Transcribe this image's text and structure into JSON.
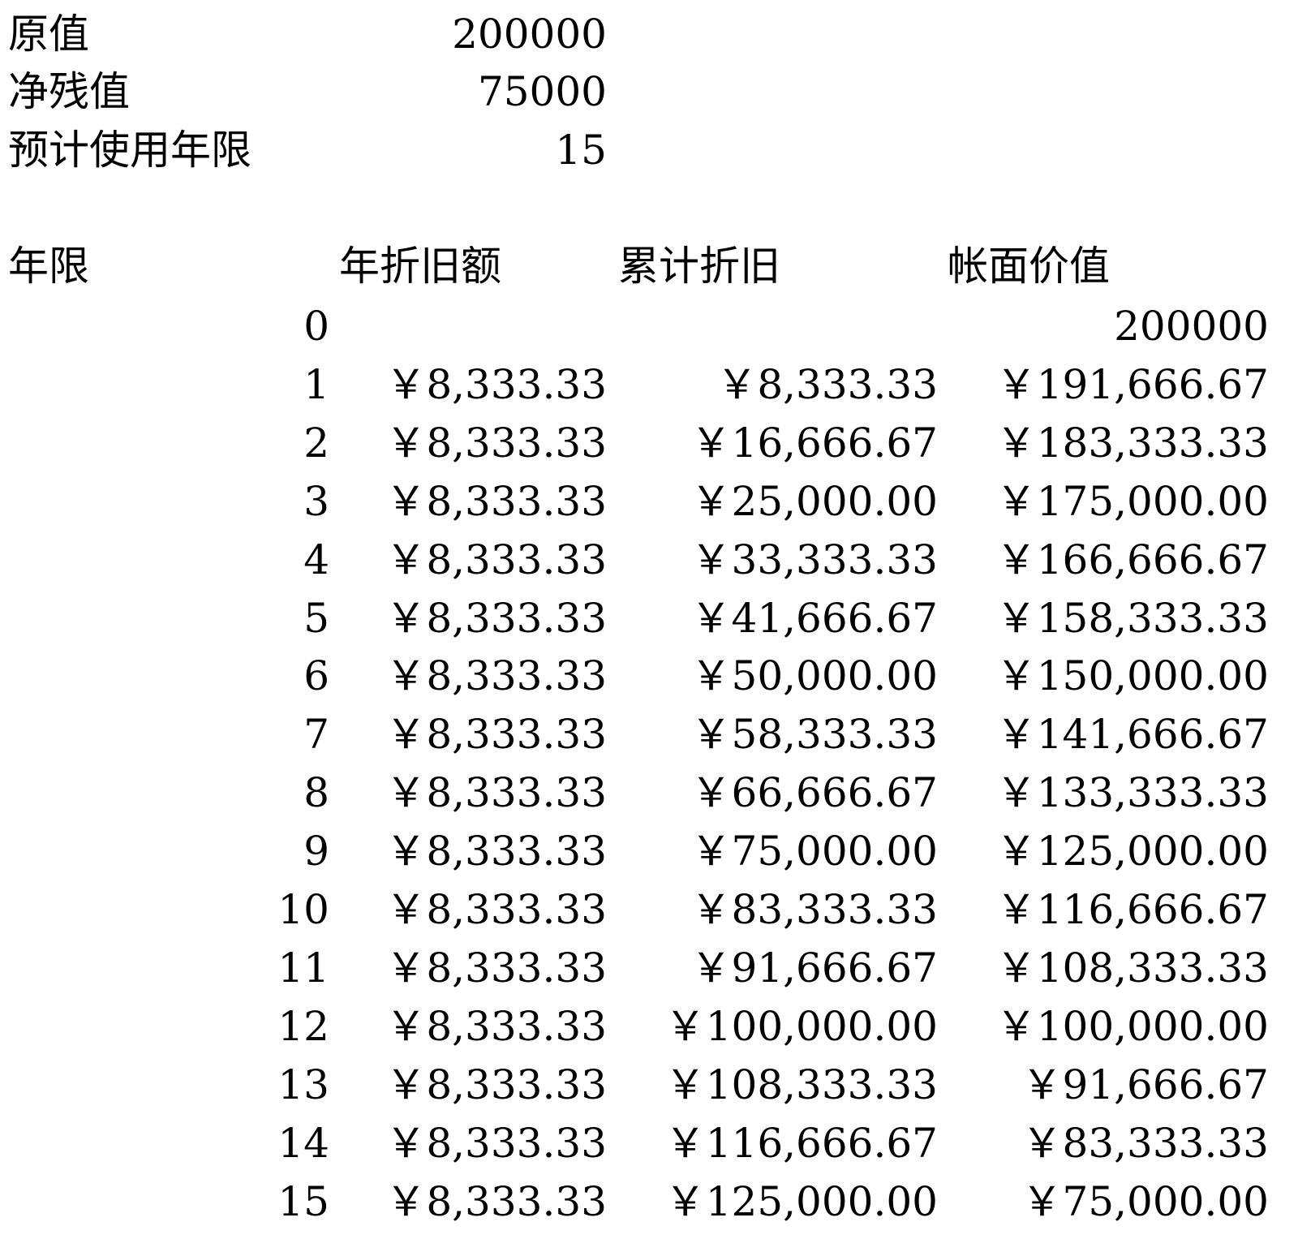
{
  "params": [
    {
      "label": "原值",
      "value": "200000"
    },
    {
      "label": "净残值",
      "value": "75000"
    },
    {
      "label": "预计使用年限",
      "value": "15"
    }
  ],
  "table": {
    "headers": [
      "年限",
      "年折旧额",
      "累计折旧",
      "帐面价值"
    ],
    "rows": [
      [
        "0",
        "",
        "",
        "200000"
      ],
      [
        "1",
        "￥8,333.33",
        "￥8,333.33",
        "￥191,666.67"
      ],
      [
        "2",
        "￥8,333.33",
        "￥16,666.67",
        "￥183,333.33"
      ],
      [
        "3",
        "￥8,333.33",
        "￥25,000.00",
        "￥175,000.00"
      ],
      [
        "4",
        "￥8,333.33",
        "￥33,333.33",
        "￥166,666.67"
      ],
      [
        "5",
        "￥8,333.33",
        "￥41,666.67",
        "￥158,333.33"
      ],
      [
        "6",
        "￥8,333.33",
        "￥50,000.00",
        "￥150,000.00"
      ],
      [
        "7",
        "￥8,333.33",
        "￥58,333.33",
        "￥141,666.67"
      ],
      [
        "8",
        "￥8,333.33",
        "￥66,666.67",
        "￥133,333.33"
      ],
      [
        "9",
        "￥8,333.33",
        "￥75,000.00",
        "￥125,000.00"
      ],
      [
        "10",
        "￥8,333.33",
        "￥83,333.33",
        "￥116,666.67"
      ],
      [
        "11",
        "￥8,333.33",
        "￥91,666.67",
        "￥108,333.33"
      ],
      [
        "12",
        "￥8,333.33",
        "￥100,000.00",
        "￥100,000.00"
      ],
      [
        "13",
        "￥8,333.33",
        "￥108,333.33",
        "￥91,666.67"
      ],
      [
        "14",
        "￥8,333.33",
        "￥116,666.67",
        "￥83,333.33"
      ],
      [
        "15",
        "￥8,333.33",
        "￥125,000.00",
        "￥75,000.00"
      ]
    ]
  }
}
